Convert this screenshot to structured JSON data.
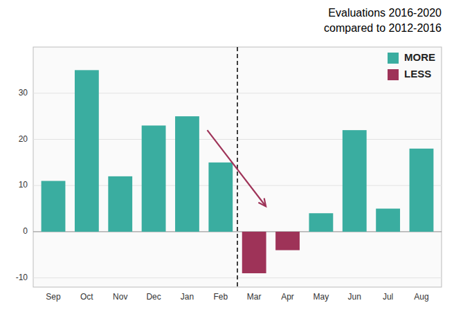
{
  "chart_data": {
    "type": "bar",
    "title": "Evaluations 2016-2020",
    "subtitle": "compared to 2012-2016",
    "categories": [
      "Sep",
      "Oct",
      "Nov",
      "Dec",
      "Jan",
      "Feb",
      "Mar",
      "Apr",
      "May",
      "Jun",
      "Jul",
      "Aug"
    ],
    "series": [
      {
        "name": "MORE",
        "color": "#3aada0",
        "values": [
          11,
          35,
          12,
          23,
          25,
          15,
          null,
          null,
          4,
          22,
          5,
          18
        ]
      },
      {
        "name": "LESS",
        "color": "#9e3358",
        "values": [
          null,
          null,
          null,
          null,
          null,
          null,
          -9,
          -4,
          null,
          null,
          null,
          null
        ]
      }
    ],
    "stacked": true,
    "ylim": [
      -12,
      40
    ],
    "yticks": [
      -10,
      0,
      10,
      20,
      30
    ],
    "grid": true,
    "legend": "upper right",
    "annotations": [
      {
        "type": "vline",
        "x": 5.5,
        "color": "#000000",
        "line_style": "dashed"
      },
      {
        "type": "arrow",
        "x1": 4.6,
        "y1": 22,
        "x2": 6.35,
        "y2": 5.5,
        "color": "#9e3358"
      }
    ]
  }
}
